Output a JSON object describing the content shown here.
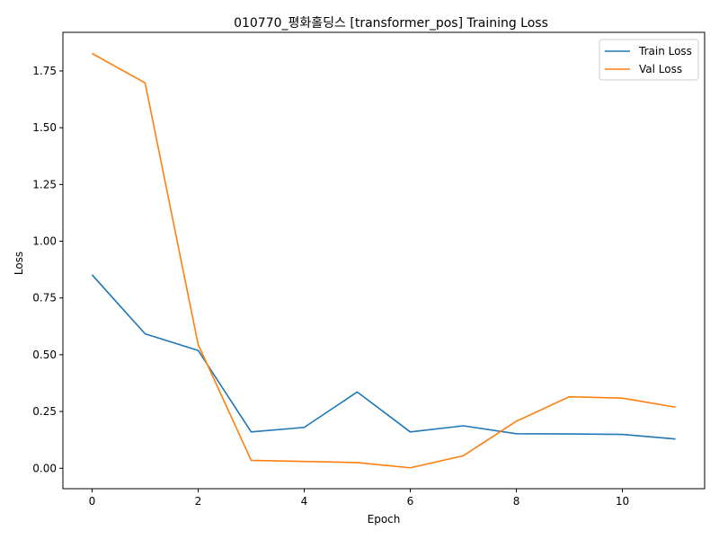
{
  "chart_data": {
    "type": "line",
    "title": "010770_평화홀딩스 [transformer_pos] Training Loss",
    "xlabel": "Epoch",
    "ylabel": "Loss",
    "xlim": [
      -0.55,
      11.55
    ],
    "ylim": [
      -0.09,
      1.92
    ],
    "xticks": [
      0,
      2,
      4,
      6,
      8,
      10
    ],
    "yticks": [
      0.0,
      0.25,
      0.5,
      0.75,
      1.0,
      1.25,
      1.5,
      1.75
    ],
    "ytick_labels": [
      "0.00",
      "0.25",
      "0.50",
      "0.75",
      "1.00",
      "1.25",
      "1.50",
      "1.75"
    ],
    "grid": false,
    "legend_position": "top-right",
    "x": [
      0,
      1,
      2,
      3,
      4,
      5,
      6,
      7,
      8,
      9,
      10,
      11
    ],
    "series": [
      {
        "name": "Train Loss",
        "color": "#1f77b4",
        "values": [
          0.852,
          0.592,
          0.519,
          0.16,
          0.18,
          0.336,
          0.16,
          0.187,
          0.152,
          0.151,
          0.149,
          0.129
        ]
      },
      {
        "name": "Val Loss",
        "color": "#ff7f0e",
        "values": [
          1.827,
          1.697,
          0.545,
          0.035,
          0.03,
          0.025,
          0.002,
          0.055,
          0.207,
          0.315,
          0.309,
          0.269
        ]
      }
    ]
  }
}
